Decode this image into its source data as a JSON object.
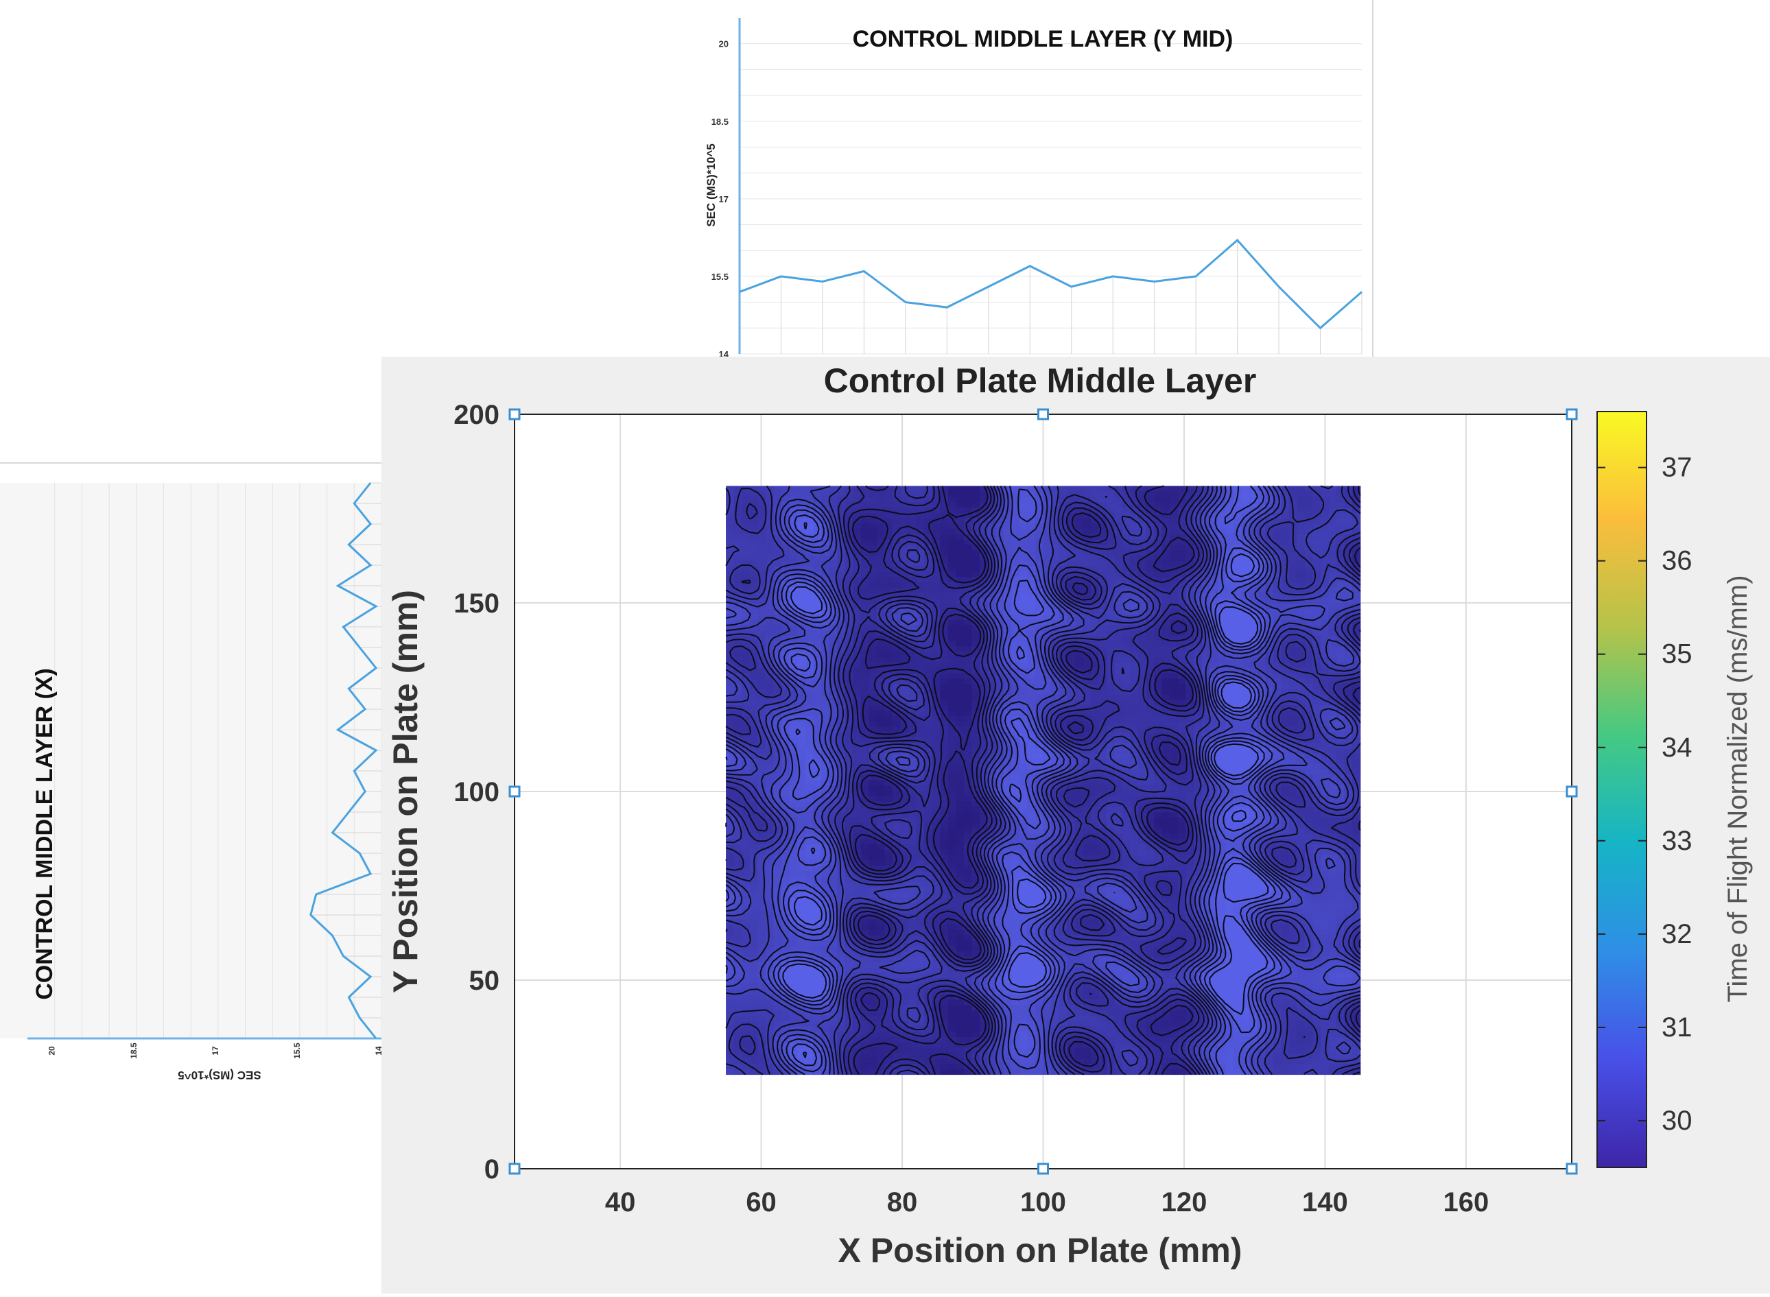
{
  "top_chart": {
    "title": "CONTROL MIDDLE LAYER (Y MID)",
    "ylabel": "SEC (MS)*10^5",
    "yticks": [
      "20",
      "18.5",
      "17",
      "15.5",
      "14"
    ],
    "line_color": "#4aa3df"
  },
  "left_chart": {
    "title": "CONTROL MIDDLE LAYER (X)",
    "xlabel": "SEC (MS)*10^5",
    "xticks": [
      "20",
      "18.5",
      "17",
      "15.5",
      "14"
    ],
    "line_color": "#4aa3df"
  },
  "main_chart": {
    "title": "Control Plate Middle Layer",
    "xlabel": "X Position on Plate (mm)",
    "ylabel": "Y Position on Plate (mm)",
    "colorbar_label": "Time of Flight Normalized (ms/mm)",
    "xticks": [
      "40",
      "60",
      "80",
      "100",
      "120",
      "140",
      "160"
    ],
    "yticks": [
      "0",
      "50",
      "100",
      "150",
      "200"
    ],
    "cticks": [
      "30",
      "31",
      "32",
      "33",
      "34",
      "35",
      "36",
      "37"
    ]
  },
  "chart_data": [
    {
      "type": "line",
      "title": "CONTROL MIDDLE LAYER (Y MID)",
      "ylabel": "SEC (MS)*10^5",
      "ylim": [
        14,
        20.5
      ],
      "x": [
        1,
        2,
        3,
        4,
        5,
        6,
        7,
        8,
        9,
        10,
        11,
        12,
        13,
        14,
        15,
        16
      ],
      "values": [
        15.2,
        15.5,
        15.4,
        15.6,
        15.0,
        14.9,
        15.3,
        15.7,
        15.3,
        15.5,
        15.4,
        15.5,
        16.2,
        15.3,
        14.5,
        15.2
      ]
    },
    {
      "type": "line",
      "title": "CONTROL MIDDLE LAYER (X)",
      "xlabel": "SEC (MS)*10^5",
      "xlim": [
        14,
        20.5
      ],
      "values": [
        14.2,
        14.5,
        14.2,
        14.6,
        14.2,
        14.8,
        14.1,
        14.7,
        14.4,
        14.1,
        14.6,
        14.3,
        14.8,
        14.1,
        14.5,
        14.3,
        14.6,
        14.9,
        14.4,
        14.2,
        15.2,
        15.3,
        14.9,
        14.7,
        14.2,
        14.6,
        14.4,
        14.1
      ]
    },
    {
      "type": "heatmap",
      "title": "Control Plate Middle Layer",
      "xlabel": "X Position on Plate (mm)",
      "ylabel": "Y Position on Plate (mm)",
      "colorbar_label": "Time of Flight Normalized (ms/mm)",
      "xlim": [
        25,
        175
      ],
      "ylim": [
        0,
        200
      ],
      "clim": [
        29.5,
        37.6
      ],
      "data_extent": {
        "x": [
          55,
          145
        ],
        "y": [
          25,
          181
        ]
      },
      "colormap": [
        "#3e26a8",
        "#4850e8",
        "#2f8ee6",
        "#16b4c6",
        "#45c982",
        "#b5c34a",
        "#fbbd3c",
        "#f9f924"
      ]
    }
  ]
}
